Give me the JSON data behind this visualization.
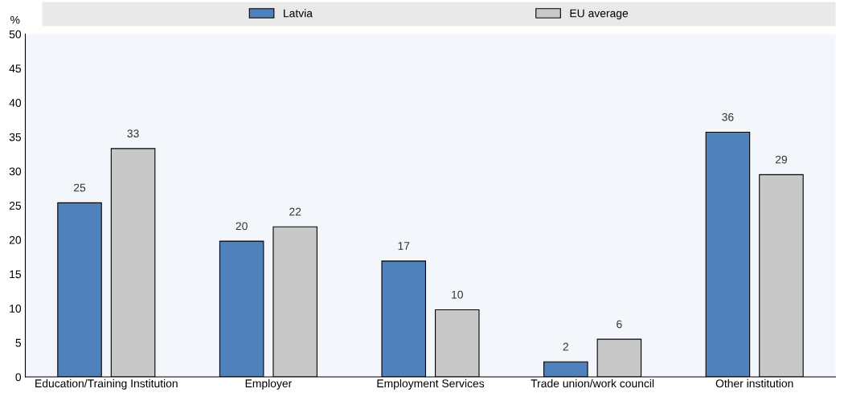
{
  "chart_data": {
    "type": "bar",
    "ylabel": "%",
    "categories": [
      "Education/Training Institution",
      "Employer",
      "Employment Services",
      "Trade union/work council",
      "Other institution"
    ],
    "series": [
      {
        "name": "Latvia",
        "color": "#4f81bd",
        "values": [
          25.4,
          19.8,
          16.9,
          2.2,
          35.7
        ],
        "value_labels": [
          "25",
          "20",
          "17",
          "2",
          "36"
        ]
      },
      {
        "name": "EU average",
        "color": "#c8c8c8",
        "values": [
          33.3,
          21.9,
          9.8,
          5.5,
          29.5
        ],
        "value_labels": [
          "33",
          "22",
          "10",
          "6",
          "29"
        ]
      }
    ],
    "ylim": [
      0,
      50
    ],
    "yticks": [
      0,
      5,
      10,
      15,
      20,
      25,
      30,
      35,
      40,
      45,
      50
    ],
    "grid": false,
    "legend": "top"
  }
}
